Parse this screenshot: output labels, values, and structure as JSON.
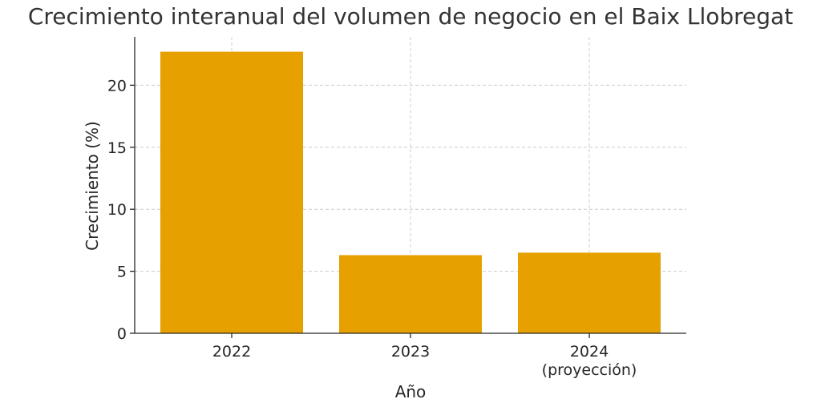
{
  "chart_data": {
    "type": "bar",
    "title": "Crecimiento interanual del volumen de negocio en el Baix Llobregat",
    "xlabel": "Año",
    "ylabel": "Crecimiento (%)",
    "categories": [
      "2022",
      "2023",
      "2024\n(proyección)"
    ],
    "values": [
      22.7,
      6.3,
      6.5
    ],
    "ylim": [
      0,
      23.9
    ],
    "yticks": [
      0,
      5,
      10,
      15,
      20
    ],
    "grid": true,
    "bar_color": "#E6A000",
    "grid_color": "#cccccc",
    "axis_color": "#262626"
  }
}
